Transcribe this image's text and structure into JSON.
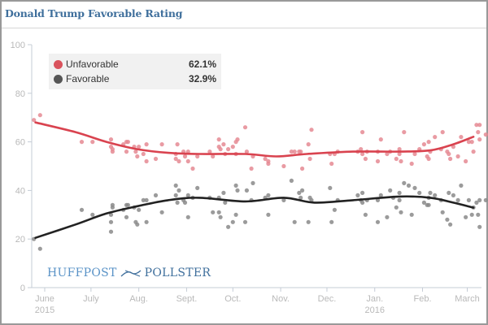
{
  "header": {
    "title": "Donald Trump Favorable Rating"
  },
  "legend": {
    "items": [
      {
        "label": "Unfavorable",
        "value": "62.1%",
        "color": "#d9434f"
      },
      {
        "label": "Favorable",
        "value": "32.9%",
        "color": "#555555"
      }
    ]
  },
  "branding": {
    "left": "HUFFPOST",
    "right": "POLLSTER",
    "icon": "arrow-logo-icon"
  },
  "chart_data": {
    "type": "scatter",
    "title": "Donald Trump Favorable Rating",
    "xlabel": "",
    "ylabel": "",
    "ylim": [
      0,
      100
    ],
    "x_unit": "days since 2015-06-01",
    "yticks": [
      "0",
      "20",
      "40",
      "60",
      "80",
      "100"
    ],
    "xticks": [
      {
        "label": "June",
        "sublabel": "2015",
        "day": 0
      },
      {
        "label": "July",
        "sublabel": "",
        "day": 30
      },
      {
        "label": "Aug.",
        "sublabel": "",
        "day": 61
      },
      {
        "label": "Sept.",
        "sublabel": "",
        "day": 92
      },
      {
        "label": "Oct.",
        "sublabel": "",
        "day": 122
      },
      {
        "label": "Nov.",
        "sublabel": "",
        "day": 153
      },
      {
        "label": "Dec.",
        "sublabel": "",
        "day": 183
      },
      {
        "label": "Jan.",
        "sublabel": "2016",
        "day": 214
      },
      {
        "label": "Feb.",
        "sublabel": "",
        "day": 245
      },
      {
        "label": "March",
        "sublabel": "",
        "day": 274
      }
    ],
    "series": [
      {
        "name": "Unfavorable",
        "color": "#d9434f",
        "point_color": "#e58a93",
        "trend": [
          [
            -6,
            68
          ],
          [
            20,
            64
          ],
          [
            40,
            60
          ],
          [
            60,
            57
          ],
          [
            80,
            55.5
          ],
          [
            100,
            55
          ],
          [
            130,
            55
          ],
          [
            150,
            54
          ],
          [
            170,
            55
          ],
          [
            200,
            56
          ],
          [
            230,
            56
          ],
          [
            250,
            56.5
          ],
          [
            265,
            59
          ],
          [
            278,
            62.1
          ]
        ],
        "points": [
          [
            -7,
            69
          ],
          [
            -3,
            71
          ],
          [
            24,
            60
          ],
          [
            31,
            60
          ],
          [
            43,
            61
          ],
          [
            43,
            58
          ],
          [
            44,
            57
          ],
          [
            44,
            56
          ],
          [
            51,
            59
          ],
          [
            53,
            60
          ],
          [
            54,
            60
          ],
          [
            53,
            56
          ],
          [
            58,
            58
          ],
          [
            59,
            56
          ],
          [
            60,
            54
          ],
          [
            61,
            58
          ],
          [
            64,
            55
          ],
          [
            66,
            59
          ],
          [
            66,
            52
          ],
          [
            72,
            53
          ],
          [
            76,
            59
          ],
          [
            86,
            59
          ],
          [
            85,
            55
          ],
          [
            85,
            53
          ],
          [
            87,
            52
          ],
          [
            91,
            54
          ],
          [
            90,
            56
          ],
          [
            93,
            56
          ],
          [
            93,
            52
          ],
          [
            99,
            54
          ],
          [
            96,
            49
          ],
          [
            107,
            56
          ],
          [
            109,
            54
          ],
          [
            113,
            58
          ],
          [
            113,
            61
          ],
          [
            114,
            57
          ],
          [
            116,
            59
          ],
          [
            117,
            55
          ],
          [
            119,
            57
          ],
          [
            124,
            55
          ],
          [
            124,
            60
          ],
          [
            125,
            61
          ],
          [
            122,
            58
          ],
          [
            130,
            66
          ],
          [
            131,
            56
          ],
          [
            134,
            49
          ],
          [
            135,
            54
          ],
          [
            143,
            53
          ],
          [
            145,
            52
          ],
          [
            145,
            51
          ],
          [
            155,
            50
          ],
          [
            160,
            56
          ],
          [
            162,
            56
          ],
          [
            165,
            56
          ],
          [
            166,
            56
          ],
          [
            167,
            49
          ],
          [
            171,
            59
          ],
          [
            173,
            65
          ],
          [
            172,
            53
          ],
          [
            185,
            55
          ],
          [
            186,
            51
          ],
          [
            188,
            55
          ],
          [
            190,
            56
          ],
          [
            203,
            56
          ],
          [
            205,
            57
          ],
          [
            206,
            64
          ],
          [
            206,
            55
          ],
          [
            208,
            53
          ],
          [
            209,
            56
          ],
          [
            216,
            56
          ],
          [
            216,
            52
          ],
          [
            224,
            56
          ],
          [
            230,
            57
          ],
          [
            231,
            52
          ],
          [
            248,
            54
          ],
          [
            249,
            60
          ],
          [
            250,
            56
          ],
          [
            249,
            53
          ],
          [
            268,
            54
          ],
          [
            265,
            58
          ],
          [
            270,
            62
          ],
          [
            263,
            53
          ],
          [
            273,
            52
          ],
          [
            280,
            67
          ],
          [
            281,
            64
          ],
          [
            282,
            61
          ],
          [
            278,
            56
          ],
          [
            282,
            67
          ],
          [
            277,
            60
          ],
          [
            290,
            54
          ],
          [
            286,
            63
          ],
          [
            275,
            60
          ],
          [
            233,
            64
          ],
          [
            230,
            55
          ],
          [
            240,
            55
          ],
          [
            246,
            59
          ],
          [
            253,
            62
          ],
          [
            257,
            57
          ],
          [
            262,
            55
          ],
          [
            258,
            64
          ],
          [
            261,
            56
          ],
          [
            222,
            55
          ],
          [
            228,
            53
          ],
          [
            218,
            61
          ],
          [
            238,
            51
          ],
          [
            243,
            57
          ]
        ]
      },
      {
        "name": "Favorable",
        "color": "#222222",
        "point_color": "#8a8a8a",
        "trend": [
          [
            -6,
            20.5
          ],
          [
            20,
            26
          ],
          [
            40,
            30.5
          ],
          [
            60,
            33.5
          ],
          [
            80,
            36
          ],
          [
            100,
            37
          ],
          [
            130,
            35.5
          ],
          [
            155,
            37
          ],
          [
            175,
            35
          ],
          [
            200,
            36
          ],
          [
            230,
            37.5
          ],
          [
            250,
            37
          ],
          [
            265,
            35
          ],
          [
            278,
            32.9
          ]
        ],
        "points": [
          [
            -7,
            20
          ],
          [
            -3,
            16
          ],
          [
            24,
            32
          ],
          [
            31,
            30
          ],
          [
            43,
            30
          ],
          [
            43,
            27
          ],
          [
            44,
            33
          ],
          [
            44,
            34
          ],
          [
            43,
            23
          ],
          [
            51,
            32
          ],
          [
            53,
            34
          ],
          [
            54,
            34
          ],
          [
            53,
            29
          ],
          [
            58,
            33
          ],
          [
            59,
            27
          ],
          [
            60,
            26
          ],
          [
            61,
            32
          ],
          [
            64,
            36
          ],
          [
            66,
            27
          ],
          [
            66,
            36
          ],
          [
            72,
            38
          ],
          [
            76,
            31
          ],
          [
            86,
            35
          ],
          [
            85,
            38
          ],
          [
            85,
            42
          ],
          [
            87,
            40
          ],
          [
            91,
            35
          ],
          [
            90,
            36
          ],
          [
            93,
            38
          ],
          [
            93,
            29
          ],
          [
            99,
            41
          ],
          [
            96,
            37
          ],
          [
            107,
            37
          ],
          [
            109,
            31
          ],
          [
            113,
            31
          ],
          [
            113,
            37
          ],
          [
            114,
            29
          ],
          [
            116,
            39
          ],
          [
            117,
            35
          ],
          [
            119,
            25
          ],
          [
            124,
            42
          ],
          [
            124,
            30
          ],
          [
            125,
            40
          ],
          [
            122,
            27
          ],
          [
            130,
            27
          ],
          [
            131,
            40
          ],
          [
            134,
            36
          ],
          [
            135,
            43
          ],
          [
            143,
            37
          ],
          [
            145,
            30
          ],
          [
            145,
            38
          ],
          [
            155,
            36
          ],
          [
            160,
            44
          ],
          [
            162,
            27
          ],
          [
            165,
            39
          ],
          [
            166,
            37
          ],
          [
            167,
            40
          ],
          [
            171,
            27
          ],
          [
            173,
            36
          ],
          [
            172,
            37
          ],
          [
            185,
            41
          ],
          [
            186,
            27
          ],
          [
            188,
            32
          ],
          [
            190,
            36
          ],
          [
            203,
            38
          ],
          [
            205,
            36
          ],
          [
            206,
            39
          ],
          [
            206,
            35
          ],
          [
            208,
            30
          ],
          [
            209,
            36
          ],
          [
            216,
            36
          ],
          [
            216,
            27
          ],
          [
            224,
            40
          ],
          [
            230,
            39
          ],
          [
            231,
            31
          ],
          [
            248,
            34
          ],
          [
            249,
            37
          ],
          [
            250,
            39
          ],
          [
            249,
            34
          ],
          [
            268,
            36
          ],
          [
            265,
            38
          ],
          [
            270,
            42
          ],
          [
            263,
            26
          ],
          [
            273,
            29
          ],
          [
            280,
            35
          ],
          [
            281,
            30
          ],
          [
            282,
            36
          ],
          [
            278,
            33
          ],
          [
            282,
            25
          ],
          [
            277,
            30
          ],
          [
            290,
            30
          ],
          [
            286,
            36
          ],
          [
            275,
            36
          ],
          [
            233,
            43
          ],
          [
            230,
            36
          ],
          [
            240,
            41
          ],
          [
            246,
            35
          ],
          [
            253,
            38
          ],
          [
            257,
            36
          ],
          [
            262,
            39
          ],
          [
            258,
            31
          ],
          [
            261,
            28
          ],
          [
            222,
            29
          ],
          [
            228,
            33
          ],
          [
            218,
            38
          ],
          [
            238,
            30
          ],
          [
            243,
            39
          ],
          [
            226,
            37
          ],
          [
            236,
            42
          ]
        ]
      }
    ]
  }
}
